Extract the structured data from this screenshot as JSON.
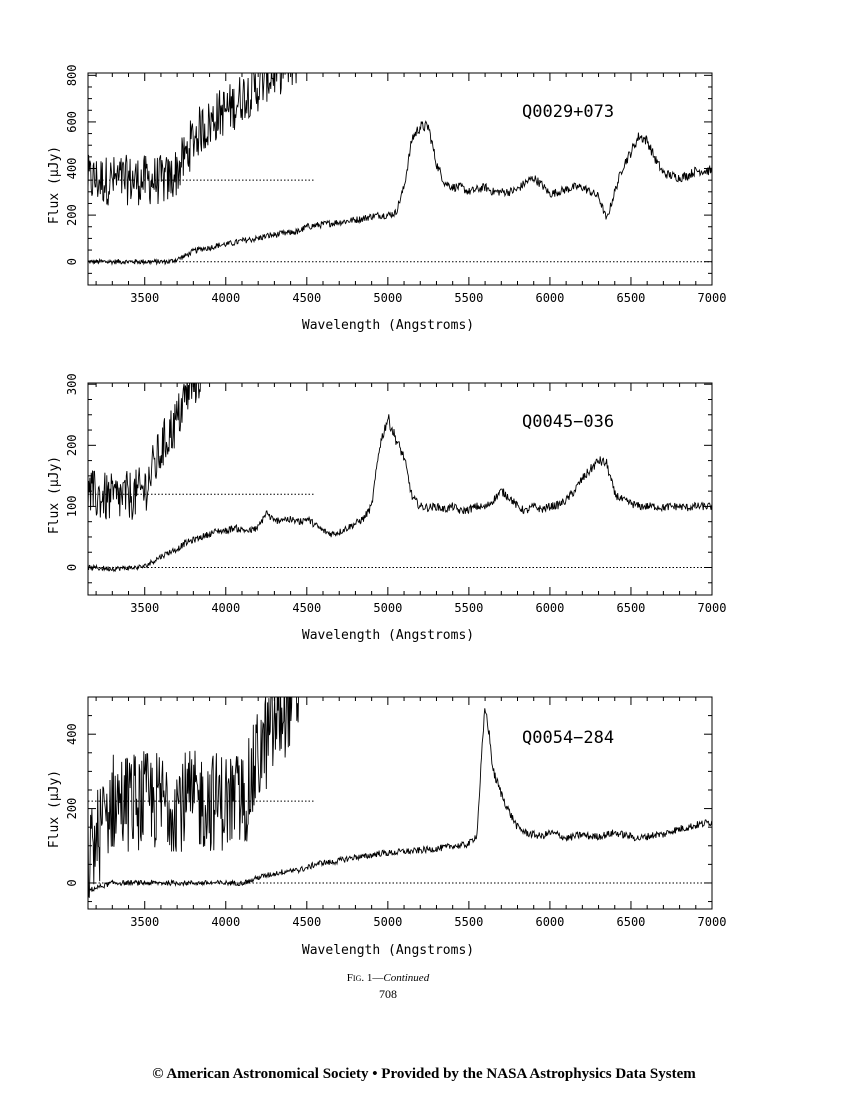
{
  "chart_data": [
    {
      "type": "line",
      "title": "Q0029+073",
      "xlabel": "Wavelength (Angstroms)",
      "ylabel": "Flux (μJy)",
      "xlim": [
        3150,
        7000
      ],
      "ylim": [
        -100,
        810
      ],
      "xticks": [
        3500,
        4000,
        4500,
        5000,
        5500,
        6000,
        6500,
        7000
      ],
      "yticks": [
        0,
        200,
        400,
        600,
        800
      ],
      "inset": {
        "x_end": 4450,
        "offset": 350,
        "scale": 4,
        "zero_line_end": 4550
      },
      "series": [
        {
          "x": [
            3150,
            3300,
            3500,
            3650,
            3700,
            3750,
            3800,
            3850,
            3900,
            3950,
            4000,
            4050,
            4100,
            4150,
            4200,
            4250,
            4300,
            4350,
            4400,
            4450,
            4500,
            4550,
            4600,
            4650,
            4700,
            4750,
            4800,
            4850,
            4900,
            4950,
            5000,
            5050,
            5100,
            5150,
            5200,
            5250,
            5300,
            5350,
            5400,
            5450,
            5500,
            5550,
            5600,
            5650,
            5700,
            5750,
            5800,
            5850,
            5900,
            5950,
            6000,
            6050,
            6100,
            6150,
            6200,
            6250,
            6300,
            6350,
            6400,
            6450,
            6500,
            6550,
            6600,
            6650,
            6700,
            6750,
            6800,
            6850,
            6900,
            6950,
            7000
          ],
          "y": [
            0,
            0,
            0,
            0,
            10,
            25,
            45,
            55,
            60,
            70,
            75,
            80,
            90,
            95,
            100,
            110,
            115,
            120,
            125,
            130,
            150,
            155,
            160,
            165,
            170,
            175,
            180,
            185,
            195,
            200,
            200,
            210,
            320,
            530,
            580,
            580,
            420,
            340,
            320,
            320,
            300,
            310,
            320,
            300,
            300,
            300,
            310,
            340,
            360,
            330,
            290,
            300,
            310,
            320,
            320,
            300,
            280,
            180,
            300,
            410,
            470,
            540,
            520,
            440,
            380,
            370,
            360,
            370,
            390,
            390,
            390
          ]
        }
      ]
    },
    {
      "type": "line",
      "title": "Q0045−036",
      "xlabel": "Wavelength (Angstroms)",
      "ylabel": "Flux (μJy)",
      "xlim": [
        3150,
        7000
      ],
      "ylim": [
        -45,
        302
      ],
      "xticks": [
        3500,
        4000,
        4500,
        5000,
        5500,
        6000,
        6500,
        7000
      ],
      "yticks": [
        0,
        100,
        200,
        300
      ],
      "inset": {
        "x_end": 4450,
        "offset": 120,
        "scale": 4,
        "zero_line_end": 4550
      },
      "series": [
        {
          "x": [
            3150,
            3300,
            3450,
            3500,
            3550,
            3600,
            3650,
            3700,
            3750,
            3800,
            3850,
            3900,
            3950,
            4000,
            4050,
            4100,
            4150,
            4200,
            4250,
            4300,
            4350,
            4400,
            4450,
            4500,
            4550,
            4600,
            4650,
            4700,
            4750,
            4800,
            4850,
            4900,
            4950,
            5000,
            5050,
            5100,
            5150,
            5200,
            5250,
            5300,
            5350,
            5400,
            5450,
            5500,
            5550,
            5600,
            5650,
            5700,
            5750,
            5800,
            5850,
            5900,
            5950,
            6000,
            6050,
            6100,
            6150,
            6200,
            6250,
            6300,
            6350,
            6400,
            6450,
            6500,
            6550,
            6600,
            6650,
            6700,
            6750,
            6800,
            6850,
            6900,
            6950,
            7000
          ],
          "y": [
            0,
            -2,
            0,
            2,
            10,
            18,
            25,
            30,
            40,
            45,
            50,
            55,
            60,
            60,
            65,
            62,
            60,
            65,
            90,
            75,
            80,
            78,
            75,
            80,
            70,
            60,
            55,
            58,
            65,
            72,
            80,
            100,
            200,
            245,
            210,
            180,
            115,
            100,
            98,
            100,
            95,
            100,
            92,
            95,
            100,
            98,
            110,
            125,
            115,
            100,
            92,
            100,
            95,
            100,
            102,
            110,
            125,
            145,
            160,
            175,
            170,
            120,
            110,
            105,
            100,
            100,
            100,
            98,
            100,
            100,
            98,
            100,
            100,
            100
          ]
        }
      ]
    },
    {
      "type": "line",
      "title": "Q0054−284",
      "xlabel": "Wavelength (Angstroms)",
      "ylabel": "Flux (μJy)",
      "xlim": [
        3150,
        7000
      ],
      "ylim": [
        -70,
        500
      ],
      "xticks": [
        3500,
        4000,
        4500,
        5000,
        5500,
        6000,
        6500,
        7000
      ],
      "yticks": [
        0,
        200,
        400
      ],
      "inset": {
        "x_end": 4450,
        "offset": 220,
        "scale": 8,
        "zero_line_end": 4550
      },
      "series": [
        {
          "x": [
            3150,
            3300,
            3500,
            3700,
            3900,
            4100,
            4150,
            4200,
            4250,
            4300,
            4350,
            4400,
            4450,
            4500,
            4550,
            4600,
            4650,
            4700,
            4750,
            4800,
            4850,
            4900,
            4950,
            5000,
            5050,
            5100,
            5150,
            5200,
            5250,
            5300,
            5350,
            5400,
            5450,
            5500,
            5550,
            5580,
            5600,
            5620,
            5650,
            5700,
            5750,
            5800,
            5850,
            5900,
            5950,
            6000,
            6050,
            6100,
            6150,
            6200,
            6250,
            6300,
            6350,
            6400,
            6450,
            6500,
            6550,
            6600,
            6650,
            6700,
            6750,
            6800,
            6850,
            6900,
            6950,
            7000
          ],
          "y": [
            -20,
            0,
            0,
            0,
            0,
            0,
            5,
            15,
            20,
            25,
            30,
            35,
            35,
            40,
            50,
            55,
            55,
            60,
            65,
            70,
            70,
            75,
            80,
            80,
            82,
            85,
            85,
            88,
            90,
            92,
            95,
            100,
            100,
            105,
            130,
            350,
            470,
            420,
            300,
            240,
            190,
            150,
            135,
            130,
            125,
            135,
            130,
            120,
            125,
            130,
            125,
            125,
            130,
            135,
            130,
            125,
            120,
            125,
            130,
            130,
            140,
            145,
            150,
            155,
            160,
            165
          ]
        }
      ]
    }
  ],
  "caption": {
    "fig_label": "Fig. 1",
    "dash": "—",
    "continued": "Continued"
  },
  "page_number": "708",
  "footer": "© American Astronomical Society  •  Provided by the NASA Astrophysics Data System"
}
